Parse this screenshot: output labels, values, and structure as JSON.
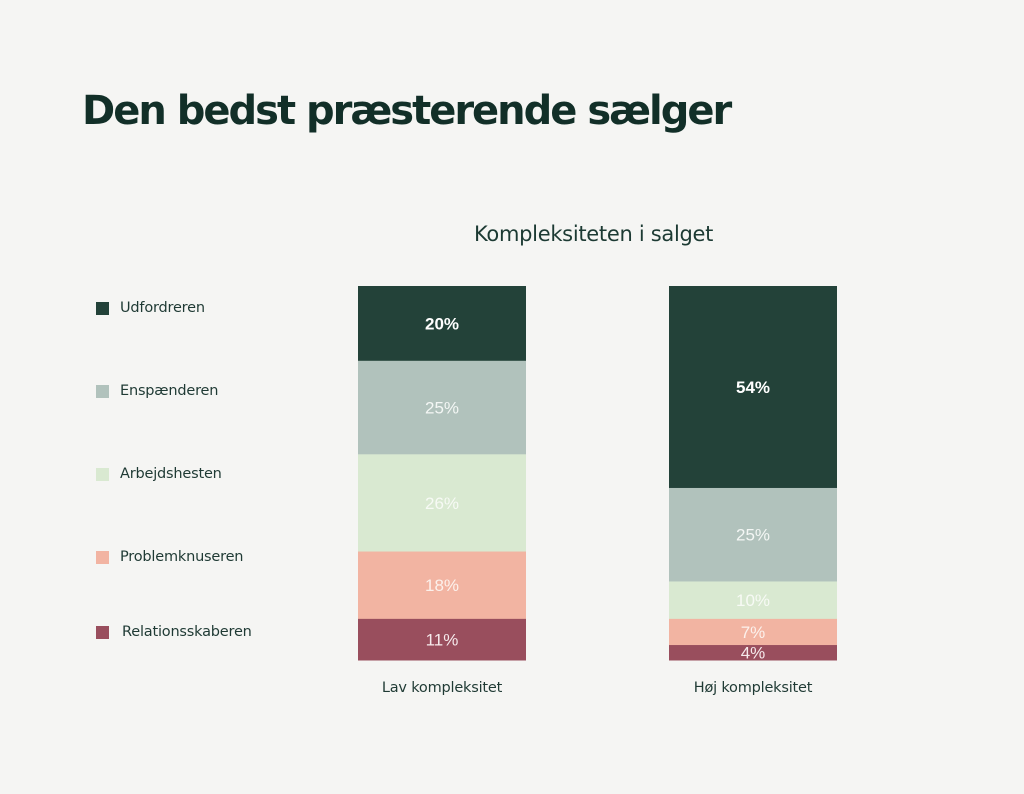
{
  "title": "Den bedst præsterende sælger",
  "chart_data": {
    "type": "bar",
    "stacked": true,
    "title": "Den bedst præsterende sælger",
    "subtitle": "Kompleksiteten i salget",
    "xlabel": "",
    "ylabel": "",
    "ylim": [
      0,
      100
    ],
    "grid": false,
    "legend_position": "left",
    "categories": [
      "Lav kompleksitet",
      "Høj kompleksitet"
    ],
    "series": [
      {
        "name": "Udfordreren",
        "color": "#234239",
        "label_color": "#ffffff",
        "label_bold": true,
        "values": [
          20,
          54
        ],
        "labels": [
          "20%",
          "54%"
        ]
      },
      {
        "name": "Enspænderen",
        "color": "#b1c2bc",
        "label_color": "#f4f7f5",
        "label_bold": false,
        "values": [
          25,
          25
        ],
        "labels": [
          "25%",
          "25%"
        ]
      },
      {
        "name": "Arbejdshesten",
        "color": "#d9e9d1",
        "label_color": "#f7faf5",
        "label_bold": false,
        "values": [
          26,
          10
        ],
        "labels": [
          "26%",
          "10%"
        ]
      },
      {
        "name": "Problemknuseren",
        "color": "#f2b4a2",
        "label_color": "#fcf1ec",
        "label_bold": false,
        "values": [
          18,
          7
        ],
        "labels": [
          "18%",
          "7%"
        ]
      },
      {
        "name": "Relationsskaberen",
        "color": "#994e5d",
        "label_color": "#f6eaec",
        "label_bold": false,
        "values": [
          11,
          4
        ],
        "labels": [
          "11%",
          "4%"
        ]
      }
    ]
  }
}
